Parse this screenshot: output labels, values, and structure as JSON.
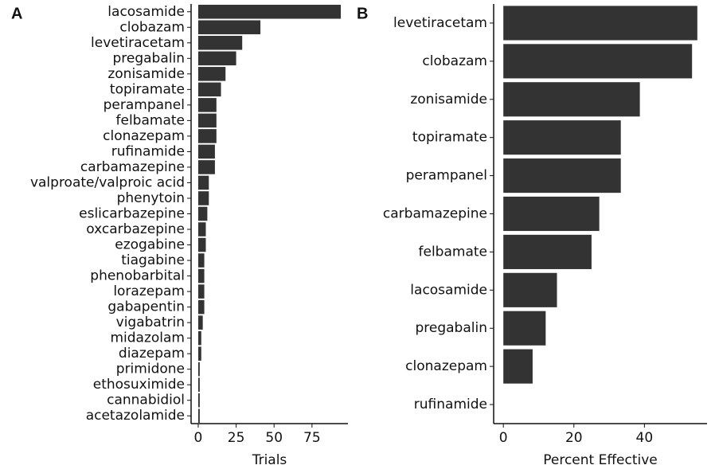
{
  "chart_data": [
    {
      "type": "bar",
      "orientation": "horizontal",
      "panel_label": "A",
      "x_label": "Trials",
      "color": "#333333",
      "categories": [
        "lacosamide",
        "clobazam",
        "levetiracetam",
        "pregabalin",
        "zonisamide",
        "topiramate",
        "perampanel",
        "felbamate",
        "clonazepam",
        "rufinamide",
        "carbamazepine",
        "valproate/valproic acid",
        "phenytoin",
        "eslicarbazepine",
        "oxcarbazepine",
        "ezogabine",
        "tiagabine",
        "phenobarbital",
        "lorazepam",
        "gabapentin",
        "vigabatrin",
        "midazolam",
        "diazepam",
        "primidone",
        "ethosuximide",
        "cannabidiol",
        "acetazolamide"
      ],
      "values": [
        94,
        41,
        29,
        25,
        18,
        15,
        12,
        12,
        12,
        11,
        11,
        7,
        7,
        6,
        5,
        5,
        4,
        4,
        4,
        4,
        3,
        2,
        2,
        1,
        1,
        1,
        1
      ],
      "xlim": [
        -4.7,
        98.7
      ],
      "xticks": [
        0,
        25,
        50,
        75
      ],
      "grid": false
    },
    {
      "type": "bar",
      "orientation": "horizontal",
      "panel_label": "B",
      "x_label": "Percent Effective",
      "color": "#333333",
      "categories": [
        "levetiracetam",
        "clobazam",
        "zonisamide",
        "topiramate",
        "perampanel",
        "carbamazepine",
        "felbamate",
        "lacosamide",
        "pregabalin",
        "clonazepam",
        "rufinamide"
      ],
      "values": [
        55,
        53.5,
        38.7,
        33.3,
        33.3,
        27.2,
        25,
        15.2,
        12,
        8.3,
        0
      ],
      "xlim": [
        -2.75,
        57.75
      ],
      "xticks": [
        0,
        20,
        40
      ],
      "grid": false
    }
  ]
}
